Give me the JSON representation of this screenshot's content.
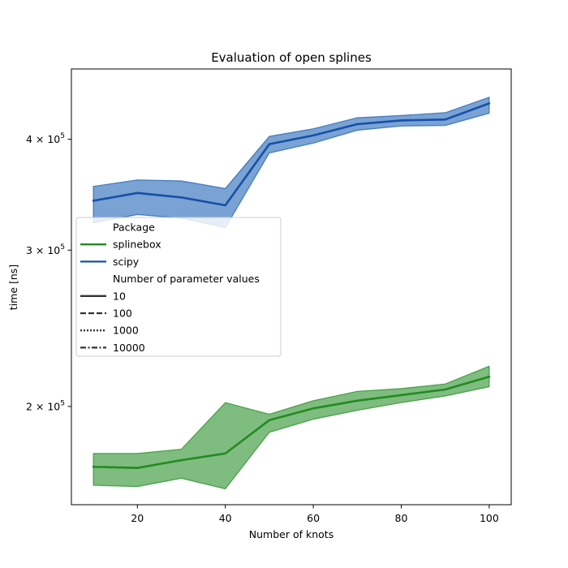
{
  "chart_data": {
    "type": "line",
    "title": "Evaluation of open splines",
    "xlabel": "Number of knots",
    "ylabel": "time [ns]",
    "xscale": "linear",
    "yscale": "log",
    "xlim": [
      5,
      105
    ],
    "ylim": [
      155000,
      480000
    ],
    "x_ticks": [
      20,
      40,
      60,
      80,
      100
    ],
    "x_tick_labels": [
      "20",
      "40",
      "60",
      "80",
      "100"
    ],
    "y_ticks": [
      200000,
      300000,
      400000
    ],
    "y_tick_labels": [
      {
        "base": "2 × 10",
        "exp": "5"
      },
      {
        "base": "3 × 10",
        "exp": "5"
      },
      {
        "base": "4 × 10",
        "exp": "5"
      }
    ],
    "grid": false,
    "x": [
      10,
      20,
      30,
      40,
      50,
      60,
      70,
      80,
      90,
      100
    ],
    "series": [
      {
        "name": "splinebox",
        "color": "#228b22",
        "band_color": "#228b22",
        "values": [
          171000,
          170500,
          174000,
          177000,
          193000,
          199000,
          203000,
          206000,
          209000,
          216000
        ],
        "upper": [
          177000,
          177000,
          179000,
          202000,
          196000,
          203000,
          208000,
          209500,
          212000,
          222000
        ],
        "lower": [
          163000,
          162500,
          166000,
          161500,
          187000,
          193500,
          198000,
          202000,
          205500,
          210500
        ]
      },
      {
        "name": "scipy",
        "color": "#1550a8",
        "band_color": "#1a5fb4",
        "values": [
          341000,
          348000,
          344000,
          337000,
          395000,
          404000,
          416000,
          420000,
          421000,
          439000
        ],
        "upper": [
          354000,
          360000,
          359000,
          352000,
          403000,
          411000,
          423000,
          425500,
          428500,
          446000
        ],
        "lower": [
          322000,
          329000,
          326000,
          318000,
          386000,
          396000,
          409500,
          414000,
          414500,
          428000
        ]
      }
    ],
    "legend": {
      "position": "center-left",
      "entries": [
        {
          "label": "Package",
          "style": "header"
        },
        {
          "label": "splinebox",
          "style": "solid",
          "color": "#228b22"
        },
        {
          "label": "scipy",
          "style": "solid",
          "color": "#1550a8"
        },
        {
          "label": "Number of parameter values",
          "style": "header"
        },
        {
          "label": "10",
          "style": "solid",
          "color": "#333333"
        },
        {
          "label": "100",
          "style": "dashed",
          "color": "#333333"
        },
        {
          "label": "1000",
          "style": "dotted",
          "color": "#333333"
        },
        {
          "label": "10000",
          "style": "dashdot",
          "color": "#333333"
        }
      ]
    }
  }
}
